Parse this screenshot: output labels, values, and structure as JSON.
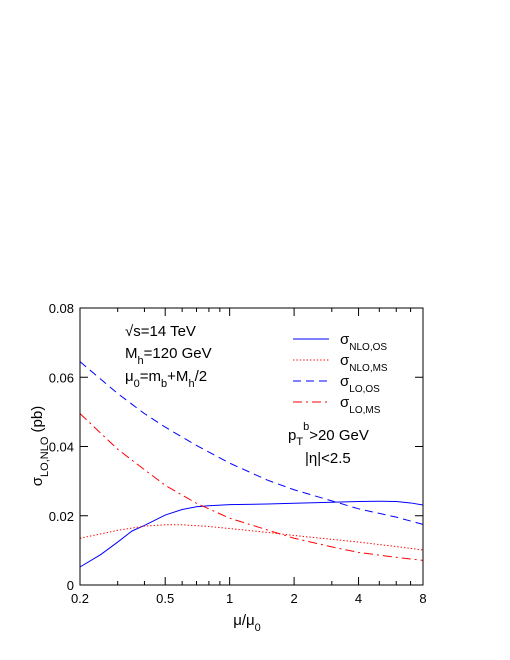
{
  "chart_data": {
    "type": "line",
    "title": "",
    "xlabel": "μ/μ",
    "xlabel_sub": "0",
    "ylabel": "σ",
    "ylabel_sub": "LO,NLO",
    "ylabel_suffix": " (pb)",
    "xscale": "log",
    "xlim": [
      0.2,
      8
    ],
    "ylim": [
      0,
      0.08
    ],
    "xticks": [
      {
        "value": 0.2,
        "label": "0.2"
      },
      {
        "value": 0.5,
        "label": "0.5"
      },
      {
        "value": 1,
        "label": "1"
      },
      {
        "value": 2,
        "label": "2"
      },
      {
        "value": 4,
        "label": "4"
      },
      {
        "value": 8,
        "label": "8"
      }
    ],
    "yticks": [
      {
        "value": 0,
        "label": "0"
      },
      {
        "value": 0.02,
        "label": "0.02"
      },
      {
        "value": 0.04,
        "label": "0.04"
      },
      {
        "value": 0.06,
        "label": "0.06"
      },
      {
        "value": 0.08,
        "label": "0.08"
      }
    ],
    "grid": false,
    "legend_position": "top-right",
    "annotations": {
      "sqrt_s": {
        "prefix": "√s=14 TeV"
      },
      "mass": {
        "main": "M",
        "sub": "h",
        "rest": "=120 GeV"
      },
      "scale": {
        "main": "μ",
        "sub1": "0",
        "mid": "=m",
        "sub2": "b",
        "mid2": "+M",
        "sub3": "h",
        "rest": "/2"
      },
      "pt_cut": {
        "main": "p",
        "sub": "T",
        "sup": "b",
        "rest": ">20 GeV"
      },
      "eta_cut": {
        "text": "|η|<2.5"
      }
    },
    "series": [
      {
        "name": "σ",
        "name_sub": "NLO,OS",
        "color": "#0000ff",
        "dash": "solid",
        "x": [
          0.2,
          0.25,
          0.3,
          0.35,
          0.4,
          0.5,
          0.6,
          0.7,
          0.8,
          1,
          1.5,
          2,
          3,
          4,
          5,
          6,
          7,
          8
        ],
        "y": [
          0.0052,
          0.0088,
          0.0124,
          0.0156,
          0.0172,
          0.0202,
          0.0218,
          0.0226,
          0.0229,
          0.0232,
          0.0234,
          0.0236,
          0.0239,
          0.0241,
          0.0242,
          0.0241,
          0.0237,
          0.0231
        ]
      },
      {
        "name": "σ",
        "name_sub": "NLO,MS",
        "color": "#ff0000",
        "dash": "dotted",
        "x": [
          0.2,
          0.3,
          0.4,
          0.5,
          0.6,
          0.8,
          1,
          1.5,
          2,
          3,
          4,
          6,
          8
        ],
        "y": [
          0.0135,
          0.0158,
          0.017,
          0.0174,
          0.0174,
          0.0169,
          0.0163,
          0.0152,
          0.0143,
          0.0132,
          0.0124,
          0.0111,
          0.0101
        ]
      },
      {
        "name": "σ",
        "name_sub": "LO,OS",
        "color": "#0000ff",
        "dash": "dashed",
        "x": [
          0.2,
          0.3,
          0.4,
          0.5,
          0.7,
          1,
          1.5,
          2,
          3,
          4,
          6,
          8
        ],
        "y": [
          0.0645,
          0.0553,
          0.0495,
          0.0456,
          0.0403,
          0.0352,
          0.0303,
          0.0275,
          0.0243,
          0.022,
          0.0196,
          0.0175
        ]
      },
      {
        "name": "σ",
        "name_sub": "LO,MS",
        "color": "#ff0000",
        "dash": "dashdot",
        "x": [
          0.2,
          0.3,
          0.4,
          0.5,
          0.7,
          1,
          1.5,
          2,
          3,
          4,
          6,
          8
        ],
        "y": [
          0.0495,
          0.0392,
          0.0333,
          0.0288,
          0.0236,
          0.0193,
          0.0159,
          0.0135,
          0.011,
          0.0094,
          0.008,
          0.0071
        ]
      }
    ]
  }
}
